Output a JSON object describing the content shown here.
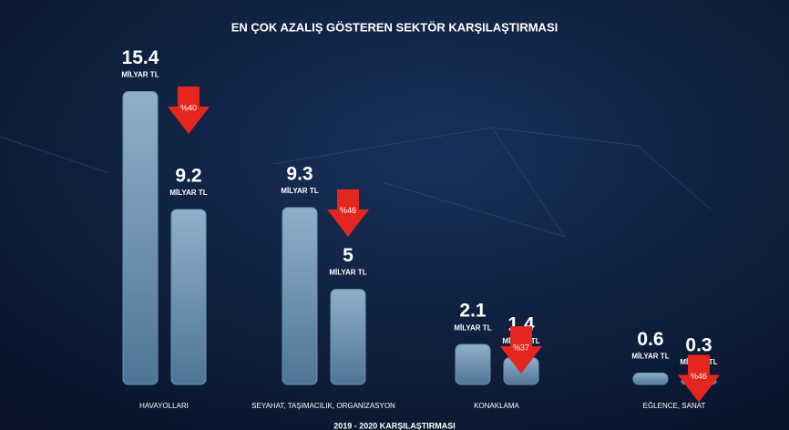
{
  "chart_data": {
    "type": "bar",
    "title": "EN ÇOK AZALIŞ GÖSTEREN SEKTÖR KARŞILAŞTIRMASI",
    "categories": [
      "HAVAYOLLARI",
      "SEYAHAT, TAŞIMACILIK, ORGANİZASYON",
      "KONAKLAMA",
      "EĞLENCE, SANAT"
    ],
    "series": [
      {
        "color": "#6f93b3",
        "values": [
          15.4,
          9.3,
          2.1,
          0.6
        ]
      },
      {
        "color": "#6f93b3",
        "values": [
          9.2,
          5,
          1.4,
          0.3
        ]
      }
    ],
    "unit": "MİLYAR TL",
    "declines": {
      "values": [
        40,
        46,
        37,
        46
      ],
      "value_labels": [
        "%40",
        "%46",
        "%37",
        "%46"
      ],
      "color": "#e5261f"
    },
    "ylim": [
      0,
      16
    ],
    "footer": "2019 - 2020 KARŞILAŞTIRMASI"
  }
}
